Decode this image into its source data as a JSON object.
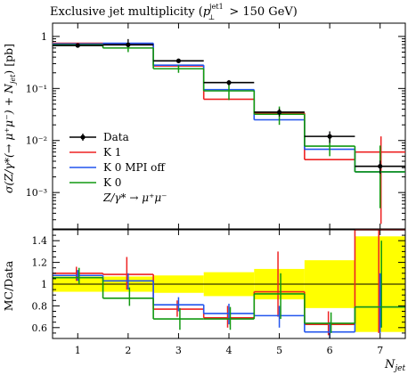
{
  "chart_data": {
    "type": "step",
    "title": "Exclusive jet multiplicity (p⊥jet1 > 150 GeV)",
    "title_main": "Exclusive jet multiplicity (",
    "title_p": "p",
    "title_sup": "jet1",
    "title_sub": "⊥",
    "title_cut": " > 150 GeV)",
    "x": [
      1,
      2,
      3,
      4,
      5,
      6,
      7
    ],
    "x_edges": [
      0.5,
      1.5,
      2.5,
      3.5,
      4.5,
      5.5,
      6.5,
      7.5
    ],
    "xlim": [
      0.5,
      7.5
    ],
    "xticks": [
      "1",
      "2",
      "3",
      "4",
      "5",
      "6",
      "7"
    ],
    "xlabel": "N_jet",
    "xlabel_main": "N",
    "xlabel_sub": "jet",
    "top": {
      "ylabel": "σ(Z/γ*(→ μ⁺μ⁻) + N_jet) [pb]",
      "ylabel_text": "σ(Z/γ*(→ μ⁺μ⁻) + N",
      "ylabel_sub": "jet",
      "ylabel_tail": ") [pb]",
      "yscale": "log",
      "ylim": [
        0.0002,
        1.8
      ],
      "yticks": [
        {
          "value": 1,
          "label": "1"
        },
        {
          "value": 0.1,
          "label": "10⁻¹"
        },
        {
          "value": 0.01,
          "label": "10⁻²"
        },
        {
          "value": 0.001,
          "label": "10⁻³"
        }
      ],
      "data": {
        "name": "Data",
        "values": [
          0.67,
          0.69,
          0.34,
          0.13,
          0.035,
          0.012,
          0.0032
        ],
        "err_low": [
          0.05,
          0.05,
          0.03,
          0.015,
          0.006,
          0.003,
          0.0009
        ],
        "err_high": [
          0.05,
          0.2,
          0.03,
          0.015,
          0.006,
          0.003,
          0.0009
        ]
      },
      "series": [
        {
          "name": "K 1",
          "color": "#ee2222",
          "values": [
            0.74,
            0.72,
            0.27,
            0.062,
            0.034,
            0.0043,
            0.006
          ],
          "err": [
            null,
            null,
            null,
            null,
            null,
            null,
            [
              0.00025,
              0.012
            ]
          ]
        },
        {
          "name": "K 0 MPI off",
          "color": "#2255ee",
          "values": [
            0.72,
            0.74,
            0.28,
            0.095,
            0.025,
            0.0068,
            0.0025
          ]
        },
        {
          "name": "K 0",
          "color": "#119911",
          "values": [
            0.69,
            0.6,
            0.24,
            0.09,
            0.032,
            0.0078,
            0.0025
          ],
          "err": [
            null,
            [
              0.5,
              0.7
            ],
            [
              0.2,
              0.28
            ],
            [
              0.06,
              0.12
            ],
            [
              0.02,
              0.045
            ],
            [
              0.005,
              0.011
            ],
            [
              0.0005,
              0.008
            ]
          ]
        }
      ]
    },
    "ratio": {
      "ylabel": "MC/Data",
      "ylim": [
        0.5,
        1.5
      ],
      "yticks": [
        "0.6",
        "0.8",
        "1",
        "1.2",
        "1.4"
      ],
      "band_low": [
        0.93,
        0.93,
        0.92,
        0.89,
        0.86,
        0.78,
        0.56
      ],
      "band_high": [
        1.07,
        1.07,
        1.08,
        1.11,
        1.14,
        1.22,
        1.44
      ],
      "series": [
        {
          "name": "K 1",
          "color": "#ee2222",
          "values": [
            1.1,
            1.09,
            0.77,
            0.69,
            0.93,
            0.63,
            1.9
          ],
          "err": [
            [
              1.03,
              1.16
            ],
            [
              0.95,
              1.25
            ],
            [
              0.7,
              0.85
            ],
            [
              0.6,
              0.8
            ],
            [
              0.7,
              1.3
            ],
            [
              0.53,
              0.75
            ],
            [
              0.55,
              1.5
            ]
          ]
        },
        {
          "name": "K 0 MPI off",
          "color": "#2255ee",
          "values": [
            1.08,
            1.03,
            0.81,
            0.73,
            0.71,
            0.56,
            0.79
          ],
          "err": [
            [
              1.03,
              1.13
            ],
            [
              0.95,
              1.1
            ],
            [
              0.75,
              0.88
            ],
            [
              0.63,
              0.82
            ],
            [
              0.6,
              0.8
            ],
            [
              0.5,
              0.65
            ],
            [
              0.55,
              1.1
            ]
          ]
        },
        {
          "name": "K 0",
          "color": "#119911",
          "values": [
            1.06,
            0.87,
            0.68,
            0.68,
            0.91,
            0.64,
            0.79
          ],
          "err": [
            [
              1.0,
              1.15
            ],
            [
              0.8,
              0.97
            ],
            [
              0.58,
              0.78
            ],
            [
              0.58,
              0.79
            ],
            [
              0.68,
              1.1
            ],
            [
              0.55,
              0.74
            ],
            [
              0.6,
              1.4
            ]
          ]
        }
      ]
    },
    "legend": {
      "placement": "lower-left",
      "entries": [
        {
          "label": "Data",
          "color": "#000000",
          "kind": "point"
        },
        {
          "label": "K 1",
          "color": "#ee2222",
          "kind": "line"
        },
        {
          "label": "K 0 MPI off",
          "color": "#2255ee",
          "kind": "line"
        },
        {
          "label": "K 0",
          "color": "#119911",
          "kind": "line"
        }
      ],
      "process_label": "Z/γ* → μ⁺μ⁻"
    },
    "colors": {
      "band": "#ffff00",
      "data": "#000000"
    }
  }
}
